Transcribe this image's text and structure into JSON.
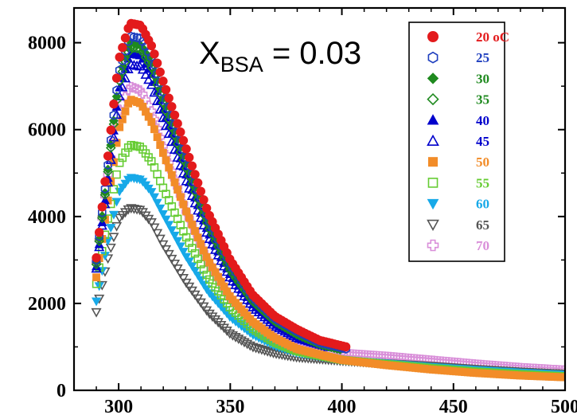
{
  "chart_data": {
    "type": "scatter",
    "title": "",
    "xlabel": "",
    "ylabel": "",
    "xlim": [
      280,
      500
    ],
    "ylim": [
      0,
      8800
    ],
    "x_ticks": [
      300,
      350,
      400,
      450,
      500
    ],
    "y_ticks": [
      0,
      2000,
      4000,
      6000,
      8000
    ],
    "x_tick_labels": [
      "300",
      "350",
      "400",
      "450",
      "500"
    ],
    "y_tick_labels": [
      "0",
      "2000",
      "4000",
      "6000",
      "8000"
    ],
    "annotation": {
      "main": "X",
      "subscript": "BSA",
      "rest": " = 0.03"
    },
    "legend_position": "top-right",
    "grid": false,
    "series": [
      {
        "name": "20 oC",
        "color": "#e31a1c",
        "marker": "circle",
        "filled": true,
        "x_range": [
          290,
          402
        ],
        "peak": 8450,
        "anchors": [
          [
            290,
            3050
          ],
          [
            295,
            5300
          ],
          [
            300,
            7600
          ],
          [
            305,
            8450
          ],
          [
            310,
            8400
          ],
          [
            315,
            7900
          ],
          [
            320,
            7100
          ],
          [
            330,
            5600
          ],
          [
            340,
            4100
          ],
          [
            350,
            3000
          ],
          [
            360,
            2200
          ],
          [
            370,
            1700
          ],
          [
            380,
            1400
          ],
          [
            390,
            1150
          ],
          [
            402,
            1000
          ]
        ]
      },
      {
        "name": "25",
        "color": "#1f3fbf",
        "marker": "hexagon",
        "filled": false,
        "x_range": [
          290,
          402
        ],
        "peak": 8150,
        "anchors": [
          [
            290,
            3000
          ],
          [
            295,
            5100
          ],
          [
            300,
            7300
          ],
          [
            305,
            8150
          ],
          [
            310,
            8100
          ],
          [
            315,
            7650
          ],
          [
            320,
            6850
          ],
          [
            330,
            5400
          ],
          [
            340,
            3950
          ],
          [
            350,
            2900
          ],
          [
            360,
            2150
          ],
          [
            370,
            1650
          ],
          [
            380,
            1350
          ],
          [
            390,
            1100
          ],
          [
            402,
            950
          ]
        ]
      },
      {
        "name": "30",
        "color": "#1f8a1f",
        "marker": "diamond",
        "filled": true,
        "x_range": [
          290,
          400
        ],
        "peak": 8000,
        "anchors": [
          [
            290,
            2950
          ],
          [
            295,
            5000
          ],
          [
            300,
            7150
          ],
          [
            305,
            8000
          ],
          [
            310,
            7950
          ],
          [
            315,
            7500
          ],
          [
            320,
            6700
          ],
          [
            330,
            5250
          ],
          [
            340,
            3850
          ],
          [
            350,
            2800
          ],
          [
            360,
            2100
          ],
          [
            370,
            1600
          ],
          [
            380,
            1300
          ],
          [
            390,
            1080
          ],
          [
            400,
            950
          ]
        ]
      },
      {
        "name": "35",
        "color": "#1f8a1f",
        "marker": "diamond",
        "filled": false,
        "x_range": [
          290,
          400
        ],
        "peak": 7900,
        "anchors": [
          [
            290,
            2900
          ],
          [
            295,
            4950
          ],
          [
            300,
            7050
          ],
          [
            305,
            7900
          ],
          [
            310,
            7850
          ],
          [
            315,
            7400
          ],
          [
            320,
            6600
          ],
          [
            330,
            5150
          ],
          [
            340,
            3780
          ],
          [
            350,
            2750
          ],
          [
            360,
            2050
          ],
          [
            370,
            1580
          ],
          [
            380,
            1280
          ],
          [
            390,
            1060
          ],
          [
            400,
            930
          ]
        ]
      },
      {
        "name": "40",
        "color": "#0000cc",
        "marker": "triangle-up",
        "filled": true,
        "x_range": [
          290,
          395
        ],
        "peak": 7750,
        "anchors": [
          [
            290,
            2850
          ],
          [
            295,
            4800
          ],
          [
            300,
            6900
          ],
          [
            305,
            7750
          ],
          [
            310,
            7700
          ],
          [
            315,
            7250
          ],
          [
            320,
            6450
          ],
          [
            330,
            5000
          ],
          [
            340,
            3650
          ],
          [
            350,
            2650
          ],
          [
            360,
            1980
          ],
          [
            370,
            1520
          ],
          [
            380,
            1230
          ],
          [
            395,
            1000
          ]
        ]
      },
      {
        "name": "45",
        "color": "#0000cc",
        "marker": "triangle-up",
        "filled": false,
        "x_range": [
          290,
          395
        ],
        "peak": 7500,
        "anchors": [
          [
            290,
            2800
          ],
          [
            295,
            4700
          ],
          [
            300,
            6700
          ],
          [
            305,
            7500
          ],
          [
            310,
            7450
          ],
          [
            315,
            7000
          ],
          [
            320,
            6250
          ],
          [
            330,
            4850
          ],
          [
            340,
            3550
          ],
          [
            350,
            2580
          ],
          [
            360,
            1920
          ],
          [
            370,
            1480
          ],
          [
            380,
            1200
          ],
          [
            395,
            980
          ]
        ]
      },
      {
        "name": "50",
        "color": "#f28c28",
        "marker": "square",
        "filled": true,
        "x_range": [
          290,
          500
        ],
        "peak": 6700,
        "anchors": [
          [
            290,
            2600
          ],
          [
            295,
            4300
          ],
          [
            300,
            6000
          ],
          [
            305,
            6700
          ],
          [
            310,
            6600
          ],
          [
            315,
            6150
          ],
          [
            320,
            5450
          ],
          [
            330,
            4150
          ],
          [
            340,
            3000
          ],
          [
            350,
            2150
          ],
          [
            360,
            1580
          ],
          [
            370,
            1200
          ],
          [
            380,
            950
          ],
          [
            400,
            700
          ],
          [
            420,
            580
          ],
          [
            440,
            480
          ],
          [
            460,
            400
          ],
          [
            480,
            340
          ],
          [
            500,
            300
          ]
        ]
      },
      {
        "name": "55",
        "color": "#66cc33",
        "marker": "square",
        "filled": false,
        "x_range": [
          290,
          500
        ],
        "peak": 5650,
        "anchors": [
          [
            290,
            2450
          ],
          [
            295,
            3900
          ],
          [
            300,
            5200
          ],
          [
            305,
            5650
          ],
          [
            310,
            5600
          ],
          [
            315,
            5250
          ],
          [
            320,
            4650
          ],
          [
            330,
            3550
          ],
          [
            340,
            2600
          ],
          [
            350,
            1900
          ],
          [
            360,
            1420
          ],
          [
            370,
            1100
          ],
          [
            380,
            900
          ],
          [
            400,
            700
          ],
          [
            420,
            600
          ],
          [
            440,
            510
          ],
          [
            460,
            430
          ],
          [
            480,
            370
          ],
          [
            500,
            320
          ]
        ]
      },
      {
        "name": "60",
        "color": "#17a9e8",
        "marker": "triangle-down",
        "filled": true,
        "x_range": [
          290,
          500
        ],
        "peak": 4900,
        "anchors": [
          [
            290,
            2050
          ],
          [
            295,
            3400
          ],
          [
            300,
            4550
          ],
          [
            305,
            4900
          ],
          [
            310,
            4850
          ],
          [
            315,
            4550
          ],
          [
            320,
            4050
          ],
          [
            330,
            3100
          ],
          [
            340,
            2280
          ],
          [
            350,
            1680
          ],
          [
            360,
            1280
          ],
          [
            370,
            1020
          ],
          [
            380,
            860
          ],
          [
            400,
            700
          ],
          [
            420,
            620
          ],
          [
            440,
            540
          ],
          [
            460,
            470
          ],
          [
            480,
            410
          ],
          [
            500,
            360
          ]
        ]
      },
      {
        "name": "65",
        "color": "#555555",
        "marker": "triangle-down",
        "filled": false,
        "x_range": [
          290,
          500
        ],
        "peak": 4200,
        "anchors": [
          [
            290,
            1800
          ],
          [
            295,
            3000
          ],
          [
            300,
            3950
          ],
          [
            305,
            4200
          ],
          [
            310,
            4150
          ],
          [
            315,
            3850
          ],
          [
            320,
            3350
          ],
          [
            330,
            2500
          ],
          [
            340,
            1800
          ],
          [
            350,
            1300
          ],
          [
            360,
            1000
          ],
          [
            370,
            850
          ],
          [
            380,
            760
          ],
          [
            400,
            680
          ],
          [
            420,
            620
          ],
          [
            440,
            560
          ],
          [
            460,
            490
          ],
          [
            480,
            430
          ],
          [
            500,
            380
          ]
        ]
      },
      {
        "name": "70",
        "color": "#d98fd9",
        "marker": "plus",
        "filled": false,
        "x_range": [
          290,
          500
        ],
        "peak": 7000,
        "anchors": [
          [
            290,
            2950
          ],
          [
            295,
            4900
          ],
          [
            300,
            6400
          ],
          [
            305,
            7000
          ],
          [
            310,
            6900
          ],
          [
            315,
            6400
          ],
          [
            320,
            5600
          ],
          [
            330,
            4150
          ],
          [
            340,
            2950
          ],
          [
            350,
            2100
          ],
          [
            360,
            1550
          ],
          [
            370,
            1200
          ],
          [
            380,
            1000
          ],
          [
            400,
            850
          ],
          [
            420,
            780
          ],
          [
            440,
            690
          ],
          [
            460,
            600
          ],
          [
            480,
            520
          ],
          [
            500,
            460
          ]
        ]
      }
    ]
  }
}
